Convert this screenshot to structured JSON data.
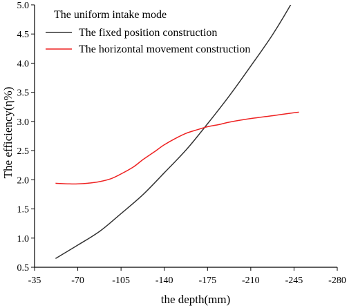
{
  "chart_data": {
    "type": "line",
    "xlabel": "the depth(mm)",
    "ylabel": "The efficiency(η%)",
    "xlim": [
      -35,
      -280
    ],
    "ylim": [
      0.5,
      5.0
    ],
    "xticks": [
      -35,
      -70,
      -105,
      -140,
      -175,
      -210,
      -245,
      -280
    ],
    "yticks": [
      0.5,
      1.0,
      1.5,
      2.0,
      2.5,
      3.0,
      3.5,
      4.0,
      4.5,
      5.0
    ],
    "grid": false,
    "legend": {
      "title": "The uniform intake mode",
      "placement": "top-left"
    },
    "series": [
      {
        "name": "The fixed position construction",
        "color": "#333333",
        "x": [
          -52,
          -70,
          -88,
          -105,
          -123,
          -140,
          -158,
          -175,
          -193,
          -210,
          -228,
          -245,
          -249
        ],
        "y": [
          0.65,
          0.88,
          1.12,
          1.42,
          1.75,
          2.12,
          2.52,
          2.96,
          3.45,
          3.95,
          4.5,
          5.1,
          5.28
        ]
      },
      {
        "name": "The horizontal movement construction",
        "color": "#ee2222",
        "x": [
          -52,
          -63,
          -70,
          -80,
          -88,
          -97,
          -105,
          -115,
          -123,
          -132,
          -140,
          -150,
          -158,
          -167,
          -175,
          -185,
          -193,
          -210,
          -228,
          -245,
          -249
        ],
        "y": [
          1.94,
          1.93,
          1.93,
          1.945,
          1.97,
          2.02,
          2.1,
          2.22,
          2.35,
          2.48,
          2.6,
          2.72,
          2.8,
          2.86,
          2.91,
          2.95,
          2.99,
          3.05,
          3.1,
          3.15,
          3.16
        ]
      }
    ]
  }
}
